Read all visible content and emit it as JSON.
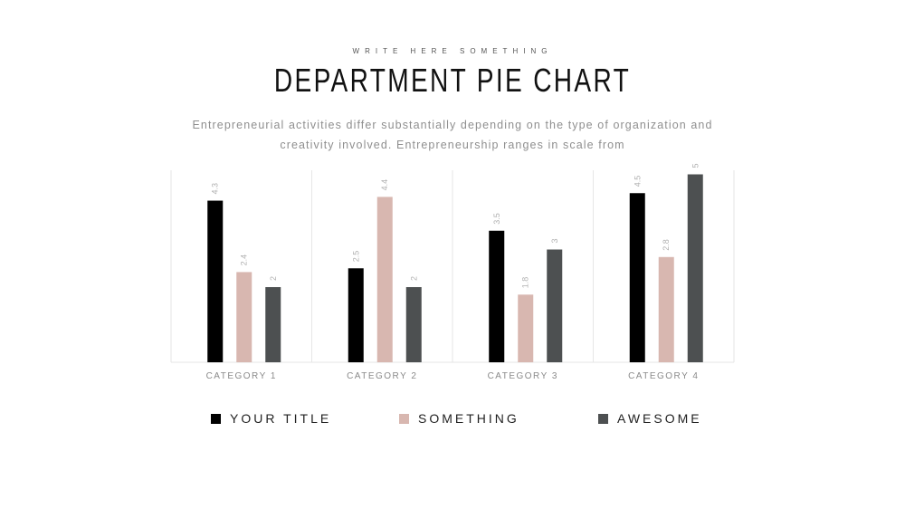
{
  "header": {
    "kicker": "WRITE HERE SOMETHING",
    "title": "DEPARTMENT PIE CHART",
    "subtitle": "Entrepreneurial activities differ substantially depending on the type of organization and creativity involved. Entrepreneurship ranges in scale from"
  },
  "colors": {
    "your_title": "#000000",
    "something": "#d8b7b0",
    "awesome": "#4d5051",
    "gridline": "#e6e6e6",
    "axis_label": "#8a8a8a",
    "data_label": "#b0b0b0"
  },
  "chart_data": {
    "type": "bar",
    "categories": [
      "CATEGORY  1",
      "CATEGORY  2",
      "CATEGORY  3",
      "CATEGORY  4"
    ],
    "series": [
      {
        "name": "YOUR TITLE",
        "values": [
          4.3,
          2.5,
          3.5,
          4.5
        ],
        "labels": [
          "4.3",
          "2.5",
          "3.5",
          "4.5"
        ]
      },
      {
        "name": "SOMETHING",
        "values": [
          2.4,
          4.4,
          1.8,
          2.8
        ],
        "labels": [
          "2.4",
          "4.4",
          "1.8",
          "2.8"
        ]
      },
      {
        "name": "AWESOME",
        "values": [
          2,
          2,
          3,
          5
        ],
        "labels": [
          "2",
          "2",
          "3",
          "5"
        ]
      }
    ],
    "ylim": [
      0,
      6
    ],
    "grid": true,
    "legend_position": "bottom"
  }
}
